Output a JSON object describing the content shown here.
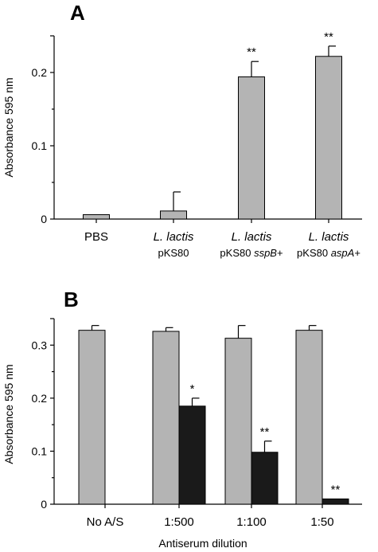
{
  "chart_data": [
    {
      "panel": "A",
      "type": "bar",
      "ylabel": "Absorbance  595 nm",
      "ylim": [
        0,
        0.25
      ],
      "yticks": [
        "0",
        "0.1",
        "0.2"
      ],
      "ytick_values": [
        0,
        0.1,
        0.2
      ],
      "categories": [
        {
          "main": "PBS",
          "main_italic": false,
          "sub_plain": "",
          "sub_italic": ""
        },
        {
          "main": "L. lactis",
          "main_italic": true,
          "sub_plain": "pKS80",
          "sub_italic": ""
        },
        {
          "main": "L. lactis",
          "main_italic": true,
          "sub_plain": "pKS80 ",
          "sub_italic": "sspB",
          "sub_suffix": "+"
        },
        {
          "main": "L. lactis",
          "main_italic": true,
          "sub_plain": "pKS80 ",
          "sub_italic": "aspA",
          "sub_suffix": "+"
        }
      ],
      "series": [
        {
          "color": "#b4b4b4",
          "values": [
            0.006,
            0.011,
            0.194,
            0.222
          ],
          "errors": [
            0,
            0.026,
            0.021,
            0.014
          ],
          "significance": [
            "",
            "",
            "**",
            "**"
          ]
        }
      ]
    },
    {
      "panel": "B",
      "type": "bar",
      "xlabel": "Antiserum dilution",
      "ylabel": "Absorbance  595 nm",
      "ylim": [
        0,
        0.35
      ],
      "yticks": [
        "0",
        "0.1",
        "0.2",
        "0.3"
      ],
      "ytick_values": [
        0,
        0.1,
        0.2,
        0.3
      ],
      "categories": [
        "No A/S",
        "1:500",
        "1:100",
        "1:50"
      ],
      "series": [
        {
          "color": "#b4b4b4",
          "values": [
            0.328,
            0.326,
            0.313,
            0.328
          ],
          "errors": [
            0.009,
            0.007,
            0.024,
            0.009
          ],
          "significance": [
            "",
            "",
            "",
            ""
          ]
        },
        {
          "color": "#1a1a1a",
          "values": [
            0,
            0.185,
            0.098,
            0.01
          ],
          "errors": [
            0,
            0.015,
            0.021,
            0
          ],
          "significance": [
            "",
            "*",
            "**",
            "**"
          ]
        }
      ]
    }
  ]
}
